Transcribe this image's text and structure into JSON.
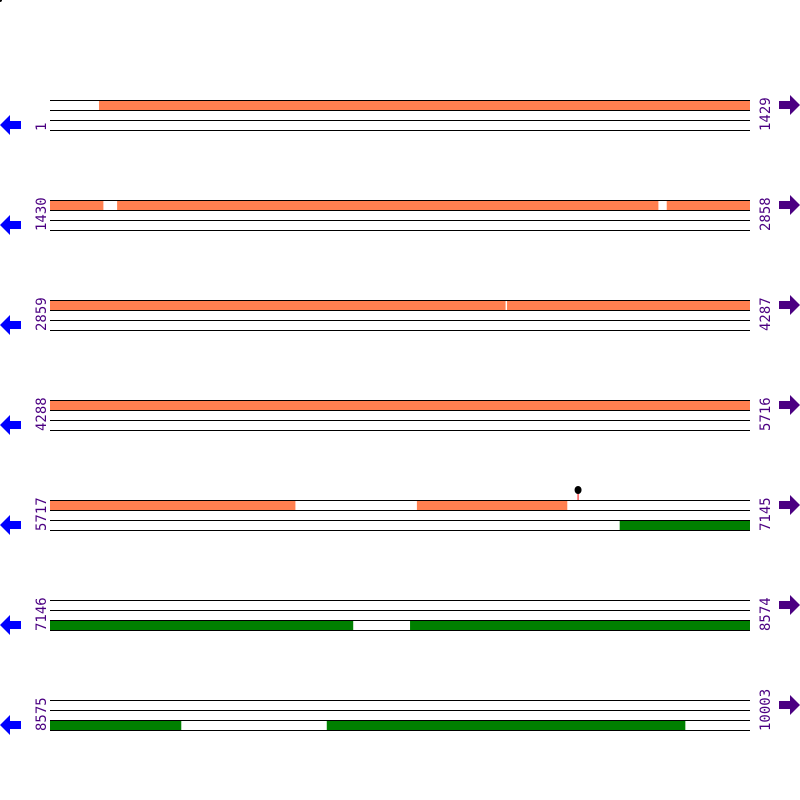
{
  "colors": {
    "forward_feature": "#ff8050",
    "reverse_feature": "#008000",
    "left_arrow": "#0000ff",
    "right_arrow": "#4b0082",
    "label": "#4b0082",
    "marker_stem": "#ff0000"
  },
  "icons": {
    "left": "arrow-left-icon",
    "right": "arrow-right-icon"
  },
  "rows": [
    {
      "start": "1",
      "end": "1429",
      "s": 1,
      "e": 1429,
      "forward": [
        [
          101,
          1429
        ]
      ],
      "reverse": []
    },
    {
      "start": "1430",
      "end": "2858",
      "s": 1430,
      "e": 2858,
      "forward": [
        [
          1430,
          1538
        ],
        [
          1567,
          2671
        ],
        [
          2689,
          2858
        ]
      ],
      "reverse": []
    },
    {
      "start": "2859",
      "end": "4287",
      "s": 2859,
      "e": 4287,
      "forward": [
        [
          2859,
          3788
        ],
        [
          3792,
          4287
        ]
      ],
      "reverse": []
    },
    {
      "start": "4288",
      "end": "5716",
      "s": 4288,
      "e": 5716,
      "forward": [
        [
          4288,
          5716
        ]
      ],
      "reverse": []
    },
    {
      "start": "5717",
      "end": "7145",
      "s": 5717,
      "e": 7145,
      "forward": [
        [
          5717,
          6217
        ],
        [
          6466,
          6772
        ]
      ],
      "reverse": [
        [
          6880,
          7145
        ]
      ],
      "markers": [
        6795
      ]
    },
    {
      "start": "7146",
      "end": "8574",
      "s": 7146,
      "e": 8574,
      "forward": [],
      "reverse": [
        [
          7146,
          7764
        ],
        [
          7881,
          8574
        ]
      ]
    },
    {
      "start": "8575",
      "end": "10003",
      "s": 8575,
      "e": 10003,
      "forward": [],
      "reverse": [
        [
          8575,
          8842
        ],
        [
          9140,
          9871
        ]
      ]
    }
  ]
}
